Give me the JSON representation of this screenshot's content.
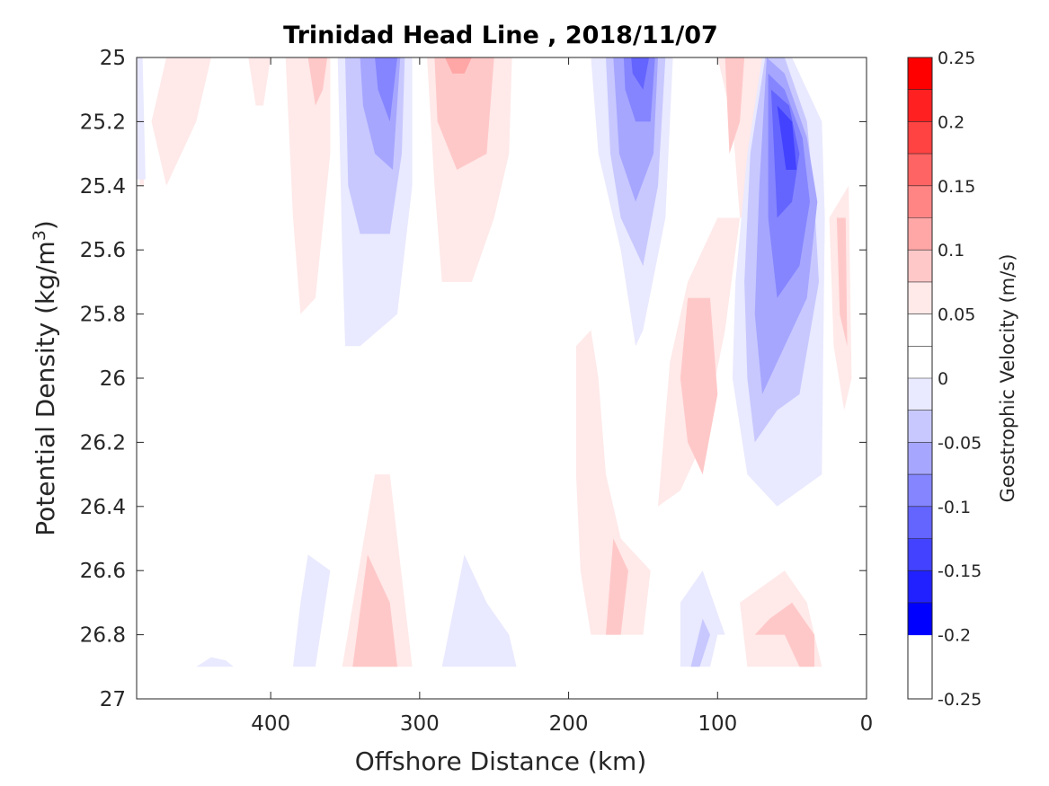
{
  "chart_data": {
    "type": "contour",
    "title": "Trinidad Head Line , 2018/11/07",
    "xlabel": "Offshore Distance (km)",
    "ylabel_main": "Potential Density (kg/m",
    "ylabel_sup": "3",
    "ylabel_close": ")",
    "colorbar_label": "Geostrophic Velocity (m/s)",
    "xlim": [
      490,
      0
    ],
    "ylim": [
      25,
      27
    ],
    "x_reversed": true,
    "y_reversed": true,
    "xticks": [
      400,
      300,
      200,
      100,
      0
    ],
    "xtick_labels": [
      "400",
      "300",
      "200",
      "100",
      "0"
    ],
    "yticks": [
      25,
      25.2,
      25.4,
      25.6,
      25.8,
      26,
      26.2,
      26.4,
      26.6,
      26.8,
      27
    ],
    "ytick_labels": [
      "25",
      "25.2",
      "25.4",
      "25.6",
      "25.8",
      "26",
      "26.2",
      "26.4",
      "26.6",
      "26.8",
      "27"
    ],
    "colorbar": {
      "range": [
        -0.25,
        0.25
      ],
      "levels": [
        0.25,
        0.225,
        0.2,
        0.175,
        0.15,
        0.125,
        0.1,
        0.075,
        0.05,
        0.025,
        0,
        -0.025,
        -0.05,
        -0.075,
        -0.1,
        -0.125,
        -0.15,
        -0.175,
        -0.2,
        -0.225,
        -0.25
      ],
      "colors": [
        "#ff0000",
        "#ff2121",
        "#ff4242",
        "#ff6464",
        "#ff8585",
        "#ffa6a6",
        "#ffc8c8",
        "#ffe9e9",
        "#ffffff",
        "#ffffff",
        "#e9e9ff",
        "#c8c8ff",
        "#a6a6ff",
        "#8585ff",
        "#6464ff",
        "#4242ff",
        "#2121ff",
        "#0000ff"
      ],
      "tick_values": [
        0.25,
        0.2,
        0.15,
        0.1,
        0.05,
        0,
        -0.05,
        -0.1,
        -0.15,
        -0.2,
        -0.25
      ],
      "tick_labels": [
        "0.25",
        "0.2",
        "0.15",
        "0.1",
        "0.05",
        "0",
        "-0.05",
        "-0.1",
        "-0.15",
        "-0.2",
        "-0.25"
      ]
    },
    "contours": [
      {
        "value": 0.025,
        "fill": "#ffe9e9",
        "points": [
          [
            488,
            25
          ],
          [
            485,
            25.4
          ],
          [
            488,
            25.4
          ]
        ]
      },
      {
        "value": -0.025,
        "fill": "#e9e9ff",
        "points": [
          [
            490,
            25
          ],
          [
            486,
            25
          ],
          [
            484,
            25.38
          ],
          [
            490,
            25.38
          ]
        ]
      },
      {
        "value": 0.025,
        "fill": "#ffe9e9",
        "points": [
          [
            470,
            25
          ],
          [
            440,
            25
          ],
          [
            450,
            25.2
          ],
          [
            470,
            25.4
          ],
          [
            480,
            25.2
          ]
        ]
      },
      {
        "value": 0.025,
        "fill": "#ffe9e9",
        "points": [
          [
            415,
            25
          ],
          [
            400,
            25
          ],
          [
            405,
            25.15
          ],
          [
            410,
            25.15
          ]
        ]
      },
      {
        "value": 0.025,
        "fill": "#ffe9e9",
        "points": [
          [
            390,
            25
          ],
          [
            360,
            25
          ],
          [
            360,
            25.3
          ],
          [
            370,
            25.75
          ],
          [
            380,
            25.8
          ],
          [
            385,
            25.5
          ]
        ]
      },
      {
        "value": 0.05,
        "fill": "#ffc8c8",
        "points": [
          [
            375,
            25
          ],
          [
            362,
            25
          ],
          [
            365,
            25.1
          ],
          [
            370,
            25.15
          ]
        ]
      },
      {
        "value": -0.025,
        "fill": "#e9e9ff",
        "points": [
          [
            355,
            25
          ],
          [
            305,
            25
          ],
          [
            305,
            25.4
          ],
          [
            315,
            25.8
          ],
          [
            340,
            25.9
          ],
          [
            350,
            25.9
          ],
          [
            352,
            25.6
          ]
        ]
      },
      {
        "value": -0.05,
        "fill": "#c8c8ff",
        "points": [
          [
            350,
            25
          ],
          [
            310,
            25
          ],
          [
            312,
            25.3
          ],
          [
            320,
            25.55
          ],
          [
            340,
            25.55
          ],
          [
            348,
            25.4
          ]
        ]
      },
      {
        "value": -0.075,
        "fill": "#a6a6ff",
        "points": [
          [
            340,
            25
          ],
          [
            313,
            25
          ],
          [
            318,
            25.35
          ],
          [
            330,
            25.3
          ],
          [
            338,
            25.15
          ]
        ]
      },
      {
        "value": -0.1,
        "fill": "#8585ff",
        "points": [
          [
            330,
            25
          ],
          [
            315,
            25
          ],
          [
            320,
            25.2
          ],
          [
            328,
            25.1
          ]
        ]
      },
      {
        "value": 0.025,
        "fill": "#ffe9e9",
        "points": [
          [
            295,
            25
          ],
          [
            238,
            25
          ],
          [
            240,
            25.3
          ],
          [
            250,
            25.5
          ],
          [
            265,
            25.7
          ],
          [
            285,
            25.7
          ],
          [
            290,
            25.4
          ]
        ]
      },
      {
        "value": 0.05,
        "fill": "#ffc8c8",
        "points": [
          [
            290,
            25
          ],
          [
            250,
            25
          ],
          [
            255,
            25.3
          ],
          [
            275,
            25.35
          ],
          [
            288,
            25.2
          ]
        ]
      },
      {
        "value": 0.075,
        "fill": "#ffa6a6",
        "points": [
          [
            283,
            25
          ],
          [
            265,
            25
          ],
          [
            270,
            25.05
          ],
          [
            278,
            25.05
          ]
        ]
      },
      {
        "value": -0.025,
        "fill": "#e9e9ff",
        "points": [
          [
            185,
            25
          ],
          [
            130,
            25
          ],
          [
            135,
            25.5
          ],
          [
            150,
            25.85
          ],
          [
            155,
            25.9
          ],
          [
            165,
            25.6
          ],
          [
            180,
            25.3
          ]
        ]
      },
      {
        "value": -0.05,
        "fill": "#c8c8ff",
        "points": [
          [
            175,
            25
          ],
          [
            135,
            25
          ],
          [
            140,
            25.4
          ],
          [
            150,
            25.65
          ],
          [
            165,
            25.5
          ],
          [
            172,
            25.3
          ]
        ]
      },
      {
        "value": -0.075,
        "fill": "#a6a6ff",
        "points": [
          [
            170,
            25
          ],
          [
            140,
            25
          ],
          [
            143,
            25.3
          ],
          [
            155,
            25.45
          ],
          [
            166,
            25.3
          ]
        ]
      },
      {
        "value": -0.1,
        "fill": "#8585ff",
        "points": [
          [
            163,
            25
          ],
          [
            142,
            25
          ],
          [
            145,
            25.2
          ],
          [
            155,
            25.2
          ],
          [
            162,
            25.1
          ]
        ]
      },
      {
        "value": -0.125,
        "fill": "#6464ff",
        "points": [
          [
            158,
            25
          ],
          [
            146,
            25
          ],
          [
            150,
            25.1
          ],
          [
            157,
            25.05
          ]
        ]
      },
      {
        "value": 0.025,
        "fill": "#ffe9e9",
        "points": [
          [
            100,
            25
          ],
          [
            60,
            25
          ],
          [
            70,
            25.4
          ],
          [
            80,
            25.5
          ],
          [
            100,
            25.5
          ],
          [
            120,
            25.7
          ],
          [
            132,
            25.95
          ],
          [
            140,
            26.4
          ],
          [
            125,
            26.35
          ],
          [
            110,
            26.2
          ],
          [
            95,
            25.85
          ],
          [
            85,
            25.5
          ],
          [
            90,
            25.2
          ]
        ]
      },
      {
        "value": 0.05,
        "fill": "#ffc8c8",
        "points": [
          [
            95,
            25
          ],
          [
            82,
            25
          ],
          [
            85,
            25.2
          ],
          [
            92,
            25.3
          ]
        ]
      },
      {
        "value": 0.025,
        "fill": "#ffe9e9",
        "points": [
          [
            195,
            25.9
          ],
          [
            185,
            25.85
          ],
          [
            180,
            26
          ],
          [
            175,
            26.3
          ],
          [
            165,
            26.5
          ],
          [
            145,
            26.6
          ],
          [
            150,
            26.8
          ],
          [
            185,
            26.8
          ],
          [
            192,
            26.6
          ],
          [
            195,
            26.3
          ]
        ]
      },
      {
        "value": 0.05,
        "fill": "#ffc8c8",
        "points": [
          [
            170,
            26.5
          ],
          [
            160,
            26.6
          ],
          [
            165,
            26.8
          ],
          [
            175,
            26.8
          ]
        ]
      },
      {
        "value": 0.05,
        "fill": "#ffc8c8",
        "points": [
          [
            120,
            25.75
          ],
          [
            105,
            25.75
          ],
          [
            100,
            26.05
          ],
          [
            110,
            26.3
          ],
          [
            120,
            26.2
          ],
          [
            125,
            26
          ]
        ]
      },
      {
        "value": -0.025,
        "fill": "#e9e9ff",
        "points": [
          [
            70,
            25
          ],
          [
            50,
            25
          ],
          [
            30,
            25.2
          ],
          [
            28,
            25.5
          ],
          [
            30,
            26.3
          ],
          [
            45,
            26.35
          ],
          [
            60,
            26.4
          ],
          [
            80,
            26.3
          ],
          [
            85,
            26.15
          ],
          [
            90,
            26
          ],
          [
            88,
            25.7
          ],
          [
            80,
            25.3
          ]
        ]
      },
      {
        "value": -0.05,
        "fill": "#c8c8ff",
        "points": [
          [
            68,
            25
          ],
          [
            55,
            25
          ],
          [
            40,
            25.2
          ],
          [
            35,
            25.45
          ],
          [
            32,
            25.7
          ],
          [
            45,
            26.05
          ],
          [
            60,
            26.1
          ],
          [
            75,
            26.2
          ],
          [
            80,
            26
          ],
          [
            82,
            25.7
          ],
          [
            78,
            25.3
          ]
        ]
      },
      {
        "value": -0.075,
        "fill": "#a6a6ff",
        "points": [
          [
            67,
            25
          ],
          [
            55,
            25.05
          ],
          [
            40,
            25.25
          ],
          [
            33,
            25.45
          ],
          [
            40,
            25.75
          ],
          [
            55,
            25.9
          ],
          [
            70,
            26.05
          ],
          [
            75,
            25.8
          ],
          [
            72,
            25.4
          ]
        ]
      },
      {
        "value": -0.1,
        "fill": "#8585ff",
        "points": [
          [
            66,
            25.05
          ],
          [
            55,
            25.1
          ],
          [
            43,
            25.25
          ],
          [
            38,
            25.45
          ],
          [
            45,
            25.65
          ],
          [
            60,
            25.75
          ],
          [
            66,
            25.5
          ]
        ]
      },
      {
        "value": -0.125,
        "fill": "#6464ff",
        "points": [
          [
            64,
            25.1
          ],
          [
            52,
            25.15
          ],
          [
            45,
            25.3
          ],
          [
            50,
            25.45
          ],
          [
            60,
            25.5
          ]
        ]
      },
      {
        "value": -0.15,
        "fill": "#4242ff",
        "points": [
          [
            60,
            25.15
          ],
          [
            50,
            25.2
          ],
          [
            47,
            25.35
          ],
          [
            54,
            25.35
          ]
        ]
      },
      {
        "value": 0.025,
        "fill": "#ffe9e9",
        "points": [
          [
            25,
            25.5
          ],
          [
            12,
            25.4
          ],
          [
            10,
            26
          ],
          [
            15,
            26.1
          ],
          [
            22,
            25.9
          ]
        ]
      },
      {
        "value": 0.05,
        "fill": "#ffc8c8",
        "points": [
          [
            20,
            25.5
          ],
          [
            14,
            25.5
          ],
          [
            13,
            25.9
          ],
          [
            18,
            25.8
          ]
        ]
      },
      {
        "value": -0.025,
        "fill": "#e9e9ff",
        "points": [
          [
            375,
            26.55
          ],
          [
            360,
            26.6
          ],
          [
            370,
            26.9
          ],
          [
            385,
            26.9
          ],
          [
            380,
            26.7
          ]
        ]
      },
      {
        "value": 0.025,
        "fill": "#ffe9e9",
        "points": [
          [
            330,
            26.3
          ],
          [
            352,
            26.9
          ],
          [
            305,
            26.9
          ],
          [
            315,
            26.5
          ],
          [
            320,
            26.3
          ]
        ]
      },
      {
        "value": 0.05,
        "fill": "#ffc8c8",
        "points": [
          [
            335,
            26.55
          ],
          [
            345,
            26.9
          ],
          [
            315,
            26.9
          ],
          [
            320,
            26.7
          ]
        ]
      },
      {
        "value": -0.025,
        "fill": "#e9e9ff",
        "points": [
          [
            270,
            26.55
          ],
          [
            285,
            26.9
          ],
          [
            235,
            26.9
          ],
          [
            240,
            26.8
          ],
          [
            255,
            26.7
          ]
        ]
      },
      {
        "value": -0.025,
        "fill": "#e9e9ff",
        "points": [
          [
            440,
            26.87
          ],
          [
            430,
            26.88
          ],
          [
            425,
            26.9
          ],
          [
            450,
            26.9
          ]
        ]
      },
      {
        "value": -0.025,
        "fill": "#e9e9ff",
        "points": [
          [
            110,
            26.6
          ],
          [
            95,
            26.8
          ],
          [
            100,
            26.8
          ],
          [
            105,
            26.9
          ],
          [
            125,
            26.9
          ],
          [
            125,
            26.7
          ]
        ]
      },
      {
        "value": -0.05,
        "fill": "#c8c8ff",
        "points": [
          [
            110,
            26.75
          ],
          [
            118,
            26.9
          ],
          [
            112,
            26.9
          ],
          [
            105,
            26.8
          ]
        ]
      },
      {
        "value": 0.025,
        "fill": "#ffe9e9",
        "points": [
          [
            55,
            26.6
          ],
          [
            40,
            26.7
          ],
          [
            35,
            26.8
          ],
          [
            30,
            26.9
          ],
          [
            80,
            26.9
          ],
          [
            85,
            26.7
          ],
          [
            70,
            26.65
          ]
        ]
      },
      {
        "value": 0.05,
        "fill": "#ffc8c8",
        "points": [
          [
            65,
            26.75
          ],
          [
            75,
            26.8
          ],
          [
            55,
            26.8
          ],
          [
            45,
            26.9
          ],
          [
            35,
            26.9
          ],
          [
            35,
            26.8
          ],
          [
            50,
            26.7
          ]
        ]
      }
    ]
  }
}
